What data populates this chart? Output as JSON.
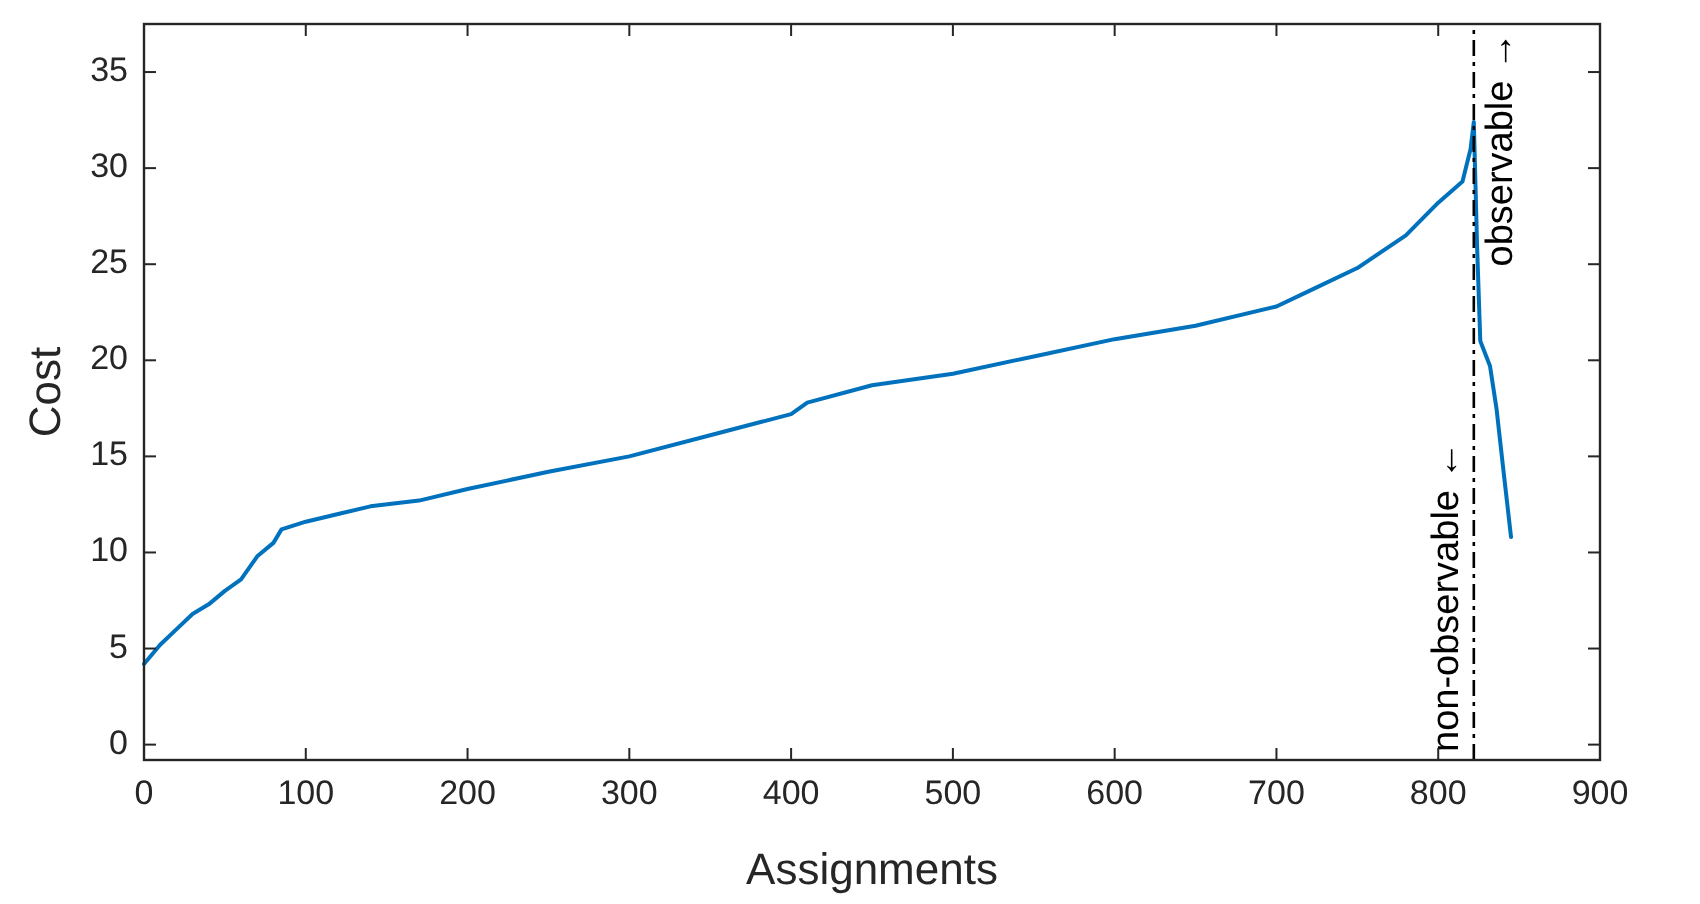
{
  "chart_data": {
    "type": "line",
    "xlabel": "Assignments",
    "ylabel": "Cost",
    "xlim": [
      0,
      900
    ],
    "xticks": [
      0,
      100,
      200,
      300,
      400,
      500,
      600,
      700,
      800,
      900
    ],
    "ylim": [
      -0.8,
      37.5
    ],
    "yticks": [
      0,
      5,
      10,
      15,
      20,
      25,
      30,
      35
    ],
    "grid": false,
    "marker": "none",
    "line_style": "solid",
    "series": [
      {
        "color": "#0072bd",
        "x": [
          0,
          10,
          20,
          30,
          40,
          50,
          60,
          70,
          80,
          85,
          100,
          120,
          140,
          170,
          200,
          250,
          300,
          350,
          400,
          410,
          450,
          500,
          550,
          600,
          650,
          700,
          720,
          750,
          780,
          800,
          815,
          820,
          822,
          824,
          826,
          832,
          836,
          840,
          845
        ],
        "values": [
          4.2,
          5.2,
          6,
          6.8,
          7.3,
          8,
          8.6,
          9.8,
          10.5,
          11.2,
          11.6,
          12,
          12.4,
          12.7,
          13.3,
          14.2,
          15,
          16.1,
          17.2,
          17.8,
          18.7,
          19.3,
          20.2,
          21.1,
          21.8,
          22.8,
          23.6,
          24.8,
          26.5,
          28.2,
          29.3,
          31,
          32.4,
          26,
          21,
          19.7,
          17.5,
          14.5,
          10.8
        ]
      }
    ],
    "ref_lines": [
      {
        "axis": "x",
        "value": 822,
        "color": "#000000",
        "line_style": "dashdot"
      }
    ],
    "annotations": [
      "non-observable ←",
      "observable →"
    ]
  }
}
